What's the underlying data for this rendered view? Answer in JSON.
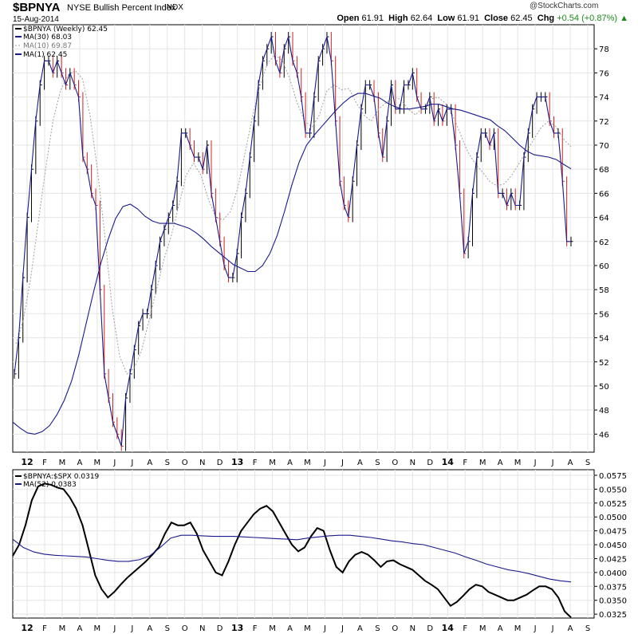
{
  "header": {
    "ticker": "$BPNYA",
    "full_name": "NYSE Bullish Percent Index",
    "exchange": "INDX",
    "date": "15-Aug-2014",
    "logo_text": "@StockCharts.com",
    "open_label": "Open",
    "open_value": "61.91",
    "high_label": "High",
    "high_value": "62.64",
    "low_label": "Low",
    "low_value": "61.91",
    "close_label": "Close",
    "close_value": "62.45",
    "chg_label": "Chg",
    "chg_value": "+0.54 (+0.87%)",
    "chg_arrow": "▲"
  },
  "colors": {
    "ma_blue": "#1a1a8c",
    "ma_gray": "#a0a0a0",
    "down_bar": "#cc2222",
    "up_bar": "#000000",
    "change_up": "#1a8a1a"
  },
  "chart_data": [
    {
      "type": "line",
      "title": "$BPNYA (Weekly) 62.45",
      "ylim": [
        44.5,
        80
      ],
      "yticks": [
        46,
        48,
        50,
        52,
        54,
        56,
        58,
        60,
        62,
        64,
        66,
        68,
        70,
        72,
        74,
        76,
        78
      ],
      "x_months": [
        "12",
        "F",
        "M",
        "A",
        "M",
        "J",
        "J",
        "A",
        "S",
        "O",
        "N",
        "D",
        "13",
        "F",
        "M",
        "A",
        "M",
        "J",
        "J",
        "A",
        "S",
        "O",
        "N",
        "D",
        "14",
        "F",
        "M",
        "A",
        "M",
        "J",
        "J",
        "A",
        "S"
      ],
      "legend": [
        "$BPNYA (Weekly) 62.45",
        "MA(30) 68.03",
        "MA(10) 69.87",
        "MA(1) 62.45"
      ],
      "price_weekly": [
        51,
        54,
        59,
        64,
        68,
        72,
        75,
        77,
        77,
        76,
        77,
        76,
        75,
        76,
        75,
        74,
        69,
        68,
        66,
        65,
        58,
        51,
        49,
        47,
        46,
        45,
        49,
        51,
        53,
        55,
        56,
        56,
        58,
        60,
        62,
        63,
        64,
        65,
        67,
        71,
        71,
        70,
        69,
        69,
        68,
        70,
        66,
        64,
        62,
        60,
        59,
        59,
        61,
        64,
        66,
        69,
        72,
        75,
        77,
        78,
        79,
        77,
        76,
        78,
        79,
        77,
        76,
        74,
        71,
        71,
        74,
        77,
        78,
        79,
        77,
        72,
        67,
        65,
        64,
        67,
        70,
        73,
        75,
        75,
        74,
        71,
        69,
        72,
        75,
        73,
        73,
        75,
        75,
        76,
        74,
        73,
        73,
        74,
        72,
        73,
        72,
        73,
        73,
        70,
        66,
        61,
        62,
        66,
        69,
        71,
        71,
        70,
        71,
        66,
        66,
        65,
        66,
        65,
        65,
        69,
        71,
        73,
        74,
        74,
        74,
        72,
        71,
        71,
        67,
        62,
        62
      ],
      "ma30": [
        47.0,
        46.5,
        46.1,
        46.0,
        46.2,
        46.7,
        47.6,
        48.8,
        50.4,
        52.6,
        55.2,
        57.8,
        60.2,
        62.2,
        63.9,
        64.9,
        65.1,
        64.7,
        64.1,
        63.7,
        63.5,
        63.5,
        63.5,
        63.3,
        63.1,
        62.7,
        62.2,
        61.6,
        61.1,
        60.6,
        60.1,
        59.8,
        59.5,
        59.5,
        60.0,
        61.0,
        62.5,
        64.5,
        66.7,
        68.6,
        70.0,
        70.8,
        71.5,
        72.2,
        72.9,
        73.5,
        74.0,
        74.3,
        74.3,
        74.1,
        73.9,
        73.5,
        73.2,
        73.0,
        73.0,
        73.1,
        73.2,
        73.4,
        73.4,
        73.2,
        73.0,
        72.9,
        72.7,
        72.5,
        72.3,
        72.1,
        71.6,
        71.2,
        70.6,
        70.0,
        69.5,
        69.2,
        69.1,
        69.0,
        68.8,
        68.4,
        68.03
      ],
      "ma10": [
        53.5,
        55.5,
        59.0,
        63.5,
        68.0,
        72.0,
        74.5,
        75.8,
        76.2,
        75.5,
        72.5,
        68.0,
        62.5,
        56.5,
        52.5,
        51.0,
        51.5,
        53.0,
        55.5,
        58.0,
        60.5,
        62.5,
        65.0,
        67.5,
        68.5,
        67.5,
        65.5,
        64.0,
        63.8,
        64.5,
        66.5,
        69.5,
        72.5,
        75.0,
        76.8,
        77.5,
        77.0,
        75.5,
        73.5,
        72.0,
        71.5,
        72.5,
        74.5,
        75.0,
        74.6,
        74.7,
        73.5,
        72.5,
        72.0,
        73.0,
        73.5,
        74.0,
        73.8,
        73.0,
        72.5,
        73.2,
        73.8,
        74.0,
        73.5,
        72.5,
        71.0,
        69.5,
        68.5,
        67.8,
        67.0,
        66.6,
        66.8,
        67.5,
        68.5,
        69.5,
        70.5,
        71.5,
        72.0,
        71.5,
        70.5,
        69.87
      ]
    },
    {
      "type": "line",
      "title": "$BPNYA:$SPX 0.0319",
      "ylim": [
        0.0318,
        0.0585
      ],
      "ytick_labels": [
        "0.0325",
        "0.0350",
        "0.0375",
        "0.0400",
        "0.0425",
        "0.0450",
        "0.0475",
        "0.0500",
        "0.0525",
        "0.0550",
        "0.0575"
      ],
      "legend": [
        "$BPNYA:$SPX 0.0319",
        "MA(52) 0.0383"
      ],
      "ratio": [
        0.043,
        0.045,
        0.0485,
        0.053,
        0.0555,
        0.056,
        0.0558,
        0.0553,
        0.055,
        0.0535,
        0.0515,
        0.0485,
        0.044,
        0.0395,
        0.037,
        0.0355,
        0.0365,
        0.0378,
        0.039,
        0.04,
        0.041,
        0.042,
        0.0432,
        0.0445,
        0.047,
        0.049,
        0.0485,
        0.0485,
        0.049,
        0.047,
        0.044,
        0.042,
        0.04,
        0.0395,
        0.042,
        0.045,
        0.0475,
        0.049,
        0.0505,
        0.0515,
        0.052,
        0.051,
        0.049,
        0.047,
        0.045,
        0.0438,
        0.0445,
        0.0465,
        0.048,
        0.0475,
        0.044,
        0.041,
        0.04,
        0.042,
        0.0432,
        0.0437,
        0.0432,
        0.0422,
        0.041,
        0.042,
        0.0422,
        0.0415,
        0.041,
        0.0405,
        0.0395,
        0.0385,
        0.0378,
        0.037,
        0.0355,
        0.034,
        0.0347,
        0.0358,
        0.037,
        0.0378,
        0.0375,
        0.0365,
        0.036,
        0.0355,
        0.035,
        0.035,
        0.0355,
        0.036,
        0.0368,
        0.0375,
        0.0375,
        0.037,
        0.0355,
        0.033,
        0.0319
      ],
      "ma52": [
        0.046,
        0.0445,
        0.0437,
        0.0433,
        0.0431,
        0.043,
        0.0429,
        0.0428,
        0.0425,
        0.0422,
        0.042,
        0.042,
        0.0423,
        0.043,
        0.0445,
        0.0462,
        0.0467,
        0.0467,
        0.0466,
        0.0465,
        0.0465,
        0.0465,
        0.0464,
        0.0463,
        0.0462,
        0.0461,
        0.046,
        0.0459,
        0.0462,
        0.0464,
        0.0466,
        0.0467,
        0.0467,
        0.0465,
        0.0463,
        0.046,
        0.0457,
        0.0455,
        0.0452,
        0.045,
        0.0445,
        0.044,
        0.0435,
        0.0428,
        0.0422,
        0.0415,
        0.041,
        0.0405,
        0.0402,
        0.0398,
        0.0393,
        0.0388,
        0.0385,
        0.0383
      ]
    }
  ]
}
